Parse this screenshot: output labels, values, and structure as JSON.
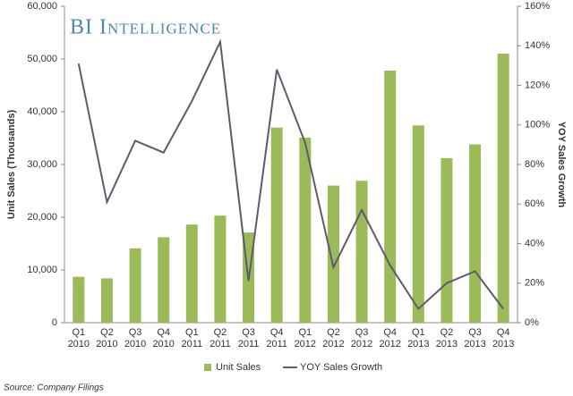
{
  "chart_data": {
    "type": "bar",
    "title": "BI Intelligence",
    "y_label": "Unit Sales (Thousands)",
    "y2_label": "YOY Sales Growth",
    "source": "Source: Company Filings",
    "categories": [
      "Q1 2010",
      "Q2 2010",
      "Q3 2010",
      "Q4 2010",
      "Q1 2011",
      "Q2 2011",
      "Q3 2011",
      "Q4 2011",
      "Q1 2012",
      "Q2 2012",
      "Q3 2012",
      "Q4 2012",
      "Q1 2013",
      "Q2 2013",
      "Q3 2013",
      "Q4 2013"
    ],
    "series": [
      {
        "name": "Unit Sales",
        "type": "bar",
        "axis": "y",
        "color": "#9bbb59",
        "values": [
          8700,
          8400,
          14100,
          16200,
          18600,
          20300,
          17100,
          37000,
          35100,
          26000,
          26900,
          47800,
          37400,
          31200,
          33800,
          51000
        ]
      },
      {
        "name": "YOY Sales Growth",
        "type": "line",
        "axis": "y2",
        "color": "#5f5a6e",
        "values": [
          131,
          61,
          92,
          86,
          112,
          142,
          21,
          128,
          91,
          28,
          57,
          29,
          7,
          20,
          26,
          7
        ]
      }
    ],
    "ylim": [
      0,
      60000
    ],
    "yticks": [
      0,
      {
        "value": 10000,
        "label": "10,000"
      },
      {
        "value": 20000,
        "label": "20,000"
      },
      {
        "value": 30000,
        "label": "30,000"
      },
      {
        "value": 40000,
        "label": "40,000"
      },
      {
        "value": 50000,
        "label": "50,000"
      },
      {
        "value": 60000,
        "label": "60,000"
      }
    ],
    "y2lim": [
      0,
      160
    ],
    "y2ticks": [
      {
        "value": 0,
        "label": "0%"
      },
      {
        "value": 20,
        "label": "20%"
      },
      {
        "value": 40,
        "label": "40%"
      },
      {
        "value": 60,
        "label": "60%"
      },
      {
        "value": 80,
        "label": "80%"
      },
      {
        "value": 100,
        "label": "100%"
      },
      {
        "value": 120,
        "label": "120%"
      },
      {
        "value": 140,
        "label": "140%"
      },
      {
        "value": 160,
        "label": "160%"
      }
    ],
    "legend": "bottom",
    "grid": false
  }
}
